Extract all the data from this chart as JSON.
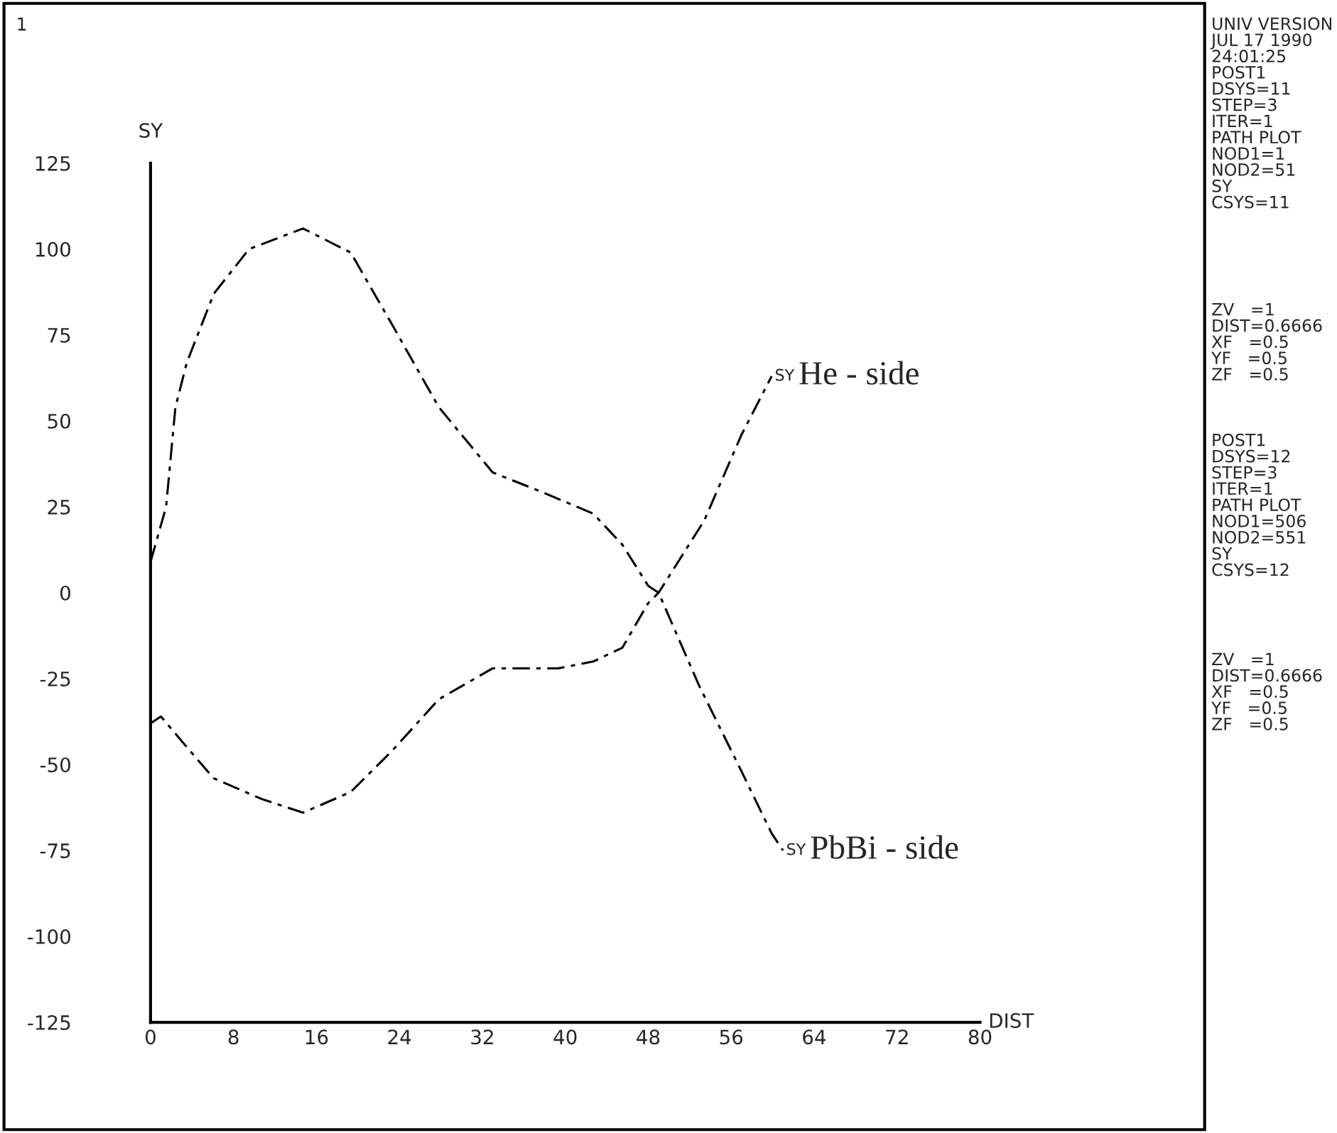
{
  "chart_data": {
    "type": "line",
    "xlabel": "DIST",
    "ylabel": "SY",
    "xlim": [
      0,
      80
    ],
    "ylim": [
      -125,
      125
    ],
    "xticks": [
      0,
      8,
      16,
      24,
      32,
      40,
      48,
      56,
      64,
      72,
      80
    ],
    "yticks": [
      -125,
      -100,
      -75,
      -50,
      -25,
      0,
      25,
      50,
      75,
      100,
      125
    ],
    "grid": false,
    "legend": false,
    "marker": "none",
    "line_style": "dashed",
    "series": [
      {
        "name": "PbBi - side",
        "color": "#000000",
        "x": [
          0,
          1.5,
          2.4,
          3.5,
          6.1,
          9.5,
          14.7,
          19.3,
          23.3,
          27.8,
          33,
          38,
          42.7,
          45.5,
          48,
          49,
          52.9,
          57,
          59.9,
          61
        ],
        "values": [
          9,
          25,
          54,
          67,
          87,
          100,
          106,
          99,
          78,
          54,
          35,
          29,
          23,
          14,
          2,
          0,
          -27,
          -52,
          -70,
          -75
        ]
      },
      {
        "name": "He - side",
        "color": "#000000",
        "x": [
          0,
          1,
          3.8,
          6.1,
          10.7,
          14.7,
          19.3,
          23.3,
          27.8,
          33,
          39.3,
          42.7,
          45.5,
          48,
          49,
          53.4,
          57,
          59.9
        ],
        "values": [
          -38,
          -36,
          -46,
          -54,
          -60,
          -64,
          -58,
          -46,
          -31,
          -22,
          -22,
          -20,
          -16,
          -3,
          0,
          21,
          46,
          63
        ]
      }
    ],
    "annotations": [
      "1",
      {
        "text": "SY",
        "x": 61,
        "y": -75
      },
      {
        "text": "SY",
        "x": 59.9,
        "y": 63
      },
      "UNIV VERSION\nJUL 17 1990\n24:01:25\nPOST1\nDSYS=11\nSTEP=3\nITER=1\nPATH PLOT\nNOD1=1\nNOD2=51\nSY\nCSYS=11",
      "ZV   =1\nDIST=0.6666\nXF   =0.5\nYF   =0.5\nZF   =0.5",
      "POST1\nDSYS=12\nSTEP=3\nITER=1\nPATH PLOT\nNOD1=506\nNOD2=551\nSY\nCSYS=12",
      "ZV   =1\nDIST=0.6666\nXF   =0.5\nYF   =0.5\nZF   =0.5"
    ]
  }
}
